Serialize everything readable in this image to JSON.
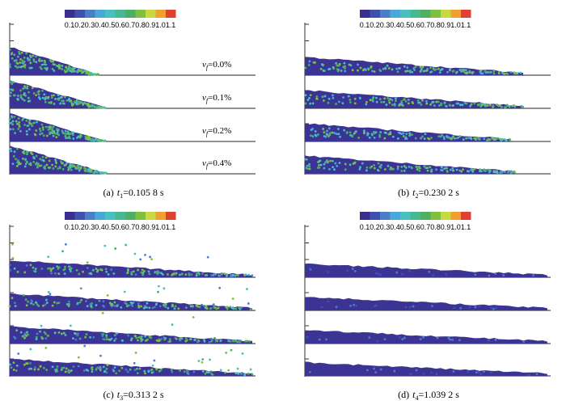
{
  "colorbar": {
    "labels": [
      "0.1",
      "0.2",
      "0.3",
      "0.4",
      "0.5",
      "0.6",
      "0.7",
      "0.8",
      "0.9",
      "1.0",
      "1.1"
    ],
    "colors": [
      "#3a2f8f",
      "#4050b0",
      "#4a7fc8",
      "#4aa8d8",
      "#49c0c0",
      "#48b890",
      "#4cb060",
      "#80c040",
      "#c8d840",
      "#f0a030",
      "#e04030"
    ]
  },
  "panels": [
    {
      "caption": {
        "label": "(a)",
        "symbol": "t",
        "subscript": "1",
        "value": "=0.105 8 s"
      },
      "legend": [
        {
          "symbol": "v",
          "subscript": "f",
          "value": "=0.0%"
        },
        {
          "symbol": "v",
          "subscript": "f",
          "value": "=0.1%"
        },
        {
          "symbol": "v",
          "subscript": "f",
          "value": "=0.2%"
        },
        {
          "symbol": "v",
          "subscript": "f",
          "value": "=0.4%"
        }
      ]
    },
    {
      "caption": {
        "label": "(b)",
        "symbol": "t",
        "subscript": "2",
        "value": "=0.230 2 s"
      }
    },
    {
      "caption": {
        "label": "(c)",
        "symbol": "t",
        "subscript": "3",
        "value": "=0.313 2 s"
      }
    },
    {
      "caption": {
        "label": "(d)",
        "symbol": "t",
        "subscript": "4",
        "value": "=1.039 2 s"
      }
    }
  ]
}
